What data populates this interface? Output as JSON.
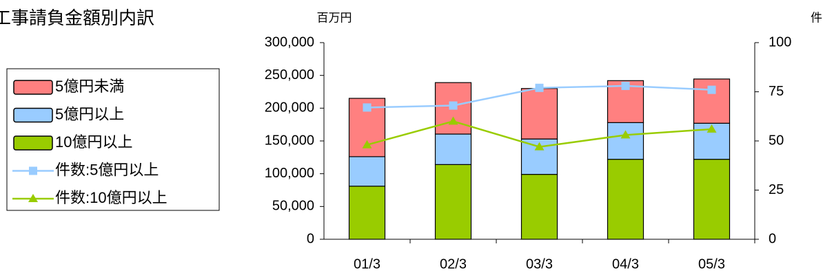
{
  "chart_data": {
    "type": "bar",
    "title": "工事請負金額別内訳",
    "ylabel": "百万円",
    "y2label": "件",
    "categories": [
      "01/3",
      "02/3",
      "03/3",
      "04/3",
      "05/3"
    ],
    "stacked": true,
    "series": [
      {
        "name": "5億円未満",
        "color": "#ff8080",
        "values": [
          89000,
          78500,
          77000,
          64000,
          67500
        ]
      },
      {
        "name": "5億円以上",
        "color": "#99ccff",
        "values": [
          45000,
          46500,
          54000,
          56000,
          55000
        ]
      },
      {
        "name": "10億円以上",
        "color": "#99cc00",
        "values": [
          81000,
          114000,
          99000,
          122000,
          122000
        ]
      },
      {
        "name": "件数:5億円以上",
        "color": "#99ccff",
        "axis": "y2",
        "type": "line",
        "marker": "square",
        "values": [
          67,
          68,
          77,
          78,
          76
        ]
      },
      {
        "name": "件数:10億円以上",
        "color": "#99cc00",
        "axis": "y2",
        "type": "line",
        "marker": "triangle",
        "values": [
          48,
          60,
          47,
          53,
          56
        ]
      }
    ],
    "ylim": [
      0,
      300000
    ],
    "yticks": [
      0,
      {
        "value": 50000,
        "label": "50,000"
      },
      {
        "value": 100000,
        "label": "100,000"
      },
      {
        "value": 150000,
        "label": "150,000"
      },
      {
        "value": 200000,
        "label": "200,000"
      },
      {
        "value": 250000,
        "label": "250,000"
      },
      {
        "value": 300000,
        "label": "300,000"
      }
    ],
    "y2lim": [
      0,
      100
    ],
    "y2ticks": [
      0,
      25,
      50,
      75,
      100
    ],
    "grid": false,
    "legend": "left"
  }
}
